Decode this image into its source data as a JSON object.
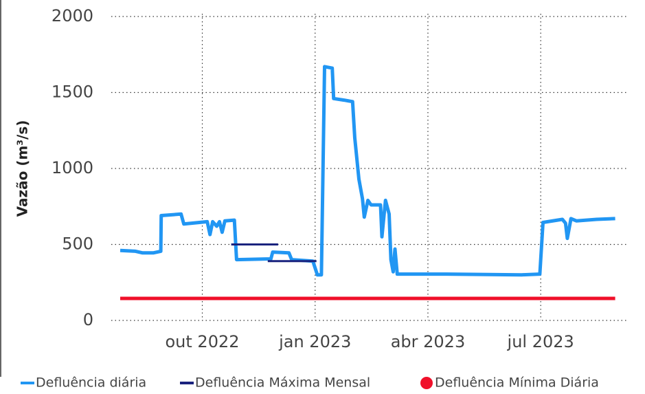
{
  "chart_data": {
    "type": "line",
    "y_label": "Vazão (m³/s)",
    "xlim": [
      2022.53,
      2023.69
    ],
    "xticks": [
      {
        "value": 2022.75,
        "label": "out 2022"
      },
      {
        "value": 2023.0,
        "label": "jan 2023"
      },
      {
        "value": 2023.25,
        "label": "abr 2023"
      },
      {
        "value": 2023.5,
        "label": "jul 2023"
      }
    ],
    "ylim": [
      0,
      2000
    ],
    "yticks": [
      0,
      500,
      1000,
      1500,
      2000
    ],
    "grid": true,
    "legend": "bottom",
    "series": [
      {
        "name": "Defluência diária",
        "color": "#2196f3",
        "marker": "line",
        "x": [
          2022.568,
          2022.602,
          2022.617,
          2022.642,
          2022.658,
          2022.659,
          2022.703,
          2022.709,
          2022.761,
          2022.767,
          2022.773,
          2022.782,
          2022.788,
          2022.794,
          2022.8,
          2022.821,
          2022.826,
          2022.902,
          2022.906,
          2022.942,
          2022.948,
          2022.995,
          2023.005,
          2023.014,
          2023.021,
          2023.038,
          2023.041,
          2023.064,
          2023.083,
          2023.088,
          2023.097,
          2023.105,
          2023.109,
          2023.117,
          2023.124,
          2023.145,
          2023.148,
          2023.156,
          2023.164,
          2023.168,
          2023.173,
          2023.177,
          2023.182,
          2023.291,
          2023.458,
          2023.498,
          2023.505,
          2023.548,
          2023.555,
          2023.559,
          2023.567,
          2023.579,
          2023.624,
          2023.665
        ],
        "values": [
          460,
          455,
          445,
          445,
          455,
          690,
          700,
          635,
          650,
          565,
          650,
          620,
          650,
          580,
          655,
          660,
          400,
          405,
          450,
          445,
          400,
          390,
          300,
          300,
          1670,
          1660,
          1460,
          1450,
          1440,
          1200,
          930,
          800,
          680,
          790,
          760,
          760,
          550,
          790,
          700,
          400,
          320,
          470,
          305,
          305,
          300,
          305,
          645,
          665,
          640,
          540,
          670,
          655,
          665,
          670
        ]
      },
      {
        "name": "Defluência Máxima Mensal",
        "color": "#1a237e",
        "marker": "line",
        "x": [
          2022.814,
          2022.918,
          2022.91,
          2022.895,
          2023.003
        ],
        "values": [
          500,
          500,
          null,
          390,
          390
        ]
      },
      {
        "name": "Defluência Mínima Diária",
        "color": "#f0102a",
        "marker": "circle",
        "x": [
          2022.568,
          2023.665
        ],
        "values": [
          145,
          145
        ]
      }
    ]
  }
}
